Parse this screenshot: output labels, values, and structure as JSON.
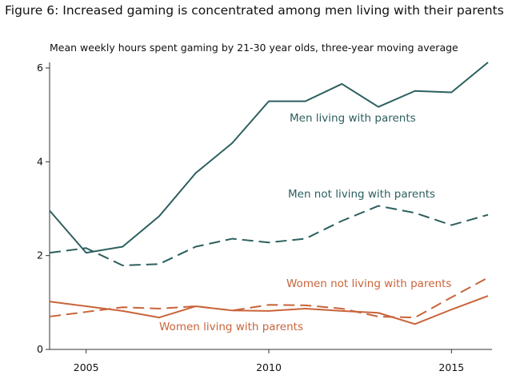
{
  "chart_data": {
    "type": "line",
    "title": "Figure 6: Increased gaming is concentrated among men living with their parents",
    "subtitle": "Mean weekly hours spent gaming by 21-30 year olds, three-year moving average",
    "xlabel": "",
    "ylabel": "",
    "xlim": [
      2004,
      2016
    ],
    "ylim": [
      0,
      6
    ],
    "xticks": [
      2005,
      2010,
      2015
    ],
    "yticks": [
      0,
      2,
      4,
      6
    ],
    "grid": false,
    "x": [
      2004,
      2005,
      2006,
      2007,
      2008,
      2009,
      2010,
      2011,
      2012,
      2013,
      2014,
      2015,
      2016
    ],
    "series": [
      {
        "name": "Men living with parents",
        "color": "#2b5f5e",
        "dash": "solid",
        "values": [
          2.96,
          2.06,
          2.19,
          2.84,
          3.76,
          4.4,
          5.29,
          5.29,
          5.66,
          5.17,
          5.51,
          5.48,
          6.12
        ]
      },
      {
        "name": "Men not living with parents",
        "color": "#2b5f5e",
        "dash": "dashed",
        "values": [
          2.06,
          2.16,
          1.79,
          1.82,
          2.19,
          2.36,
          2.28,
          2.36,
          2.74,
          3.06,
          2.91,
          2.65,
          2.87
        ]
      },
      {
        "name": "Women not living with parents",
        "color": "#c8643a",
        "dash": "dashed",
        "values": [
          0.7,
          0.8,
          0.9,
          0.87,
          0.92,
          0.83,
          0.95,
          0.94,
          0.87,
          0.7,
          0.68,
          1.11,
          1.53
        ]
      },
      {
        "name": "Women living with parents",
        "color": "#c8643a",
        "dash": "solid",
        "values": [
          1.02,
          0.92,
          0.82,
          0.68,
          0.92,
          0.83,
          0.82,
          0.87,
          0.82,
          0.78,
          0.54,
          0.85,
          1.14
        ]
      }
    ]
  }
}
